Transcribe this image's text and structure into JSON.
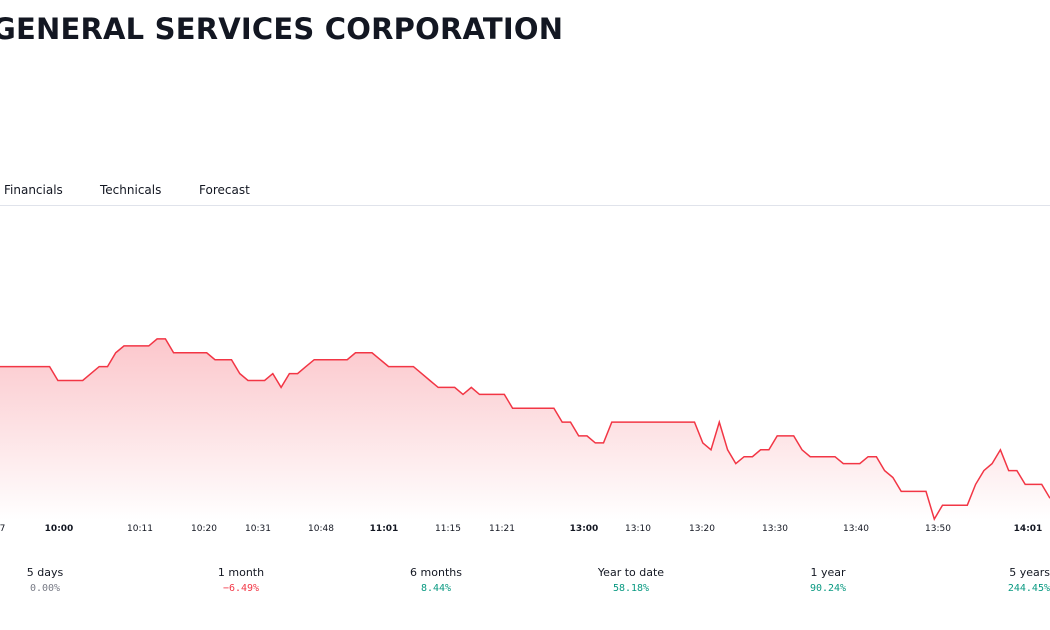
{
  "header": {
    "title": "GENERAL SERVICES CORPORATION"
  },
  "tabs": [
    {
      "label": "Financials"
    },
    {
      "label": "Technicals"
    },
    {
      "label": "Forecast"
    }
  ],
  "colors": {
    "line": "#f23645",
    "fill_top": "#fbc4c9",
    "negative": "#f23645",
    "positive": "#089981"
  },
  "chart_data": {
    "type": "area",
    "x_ticks": [
      "…7",
      "10:00",
      "10:11",
      "10:20",
      "10:31",
      "10:48",
      "11:01",
      "11:15",
      "11:21",
      "13:00",
      "13:10",
      "13:20",
      "13:30",
      "13:40",
      "13:50",
      "14:01"
    ],
    "bold_ticks": [
      "10:00",
      "11:01",
      "13:00",
      "14:01"
    ],
    "values": [
      59,
      59,
      59,
      59,
      59,
      59,
      59,
      57,
      57,
      57,
      57,
      58,
      59,
      59,
      61,
      62,
      62,
      62,
      62,
      63,
      63,
      61,
      61,
      61,
      61,
      61,
      60,
      60,
      60,
      58,
      57,
      57,
      57,
      58,
      56,
      58,
      58,
      59,
      60,
      60,
      60,
      60,
      60,
      61,
      61,
      61,
      60,
      59,
      59,
      59,
      59,
      58,
      57,
      56,
      56,
      56,
      55,
      56,
      55,
      55,
      55,
      55,
      53,
      53,
      53,
      53,
      53,
      53,
      51,
      51,
      49,
      49,
      48,
      48,
      51,
      51,
      51,
      51,
      51,
      51,
      51,
      51,
      51,
      51,
      51,
      48,
      47,
      51,
      47,
      45,
      46,
      46,
      47,
      47,
      49,
      49,
      49,
      47,
      46,
      46,
      46,
      46,
      45,
      45,
      45,
      46,
      46,
      44,
      43,
      41,
      41,
      41,
      41,
      37,
      39,
      39,
      39,
      39,
      42,
      44,
      45,
      47,
      44,
      44,
      42,
      42,
      42,
      40
    ]
  },
  "periods": [
    {
      "label": "5 days",
      "change": "0.00%",
      "sign": "zero"
    },
    {
      "label": "1 month",
      "change": "−6.49%",
      "sign": "neg"
    },
    {
      "label": "6 months",
      "change": "8.44%",
      "sign": "pos"
    },
    {
      "label": "Year to date",
      "change": "58.18%",
      "sign": "pos"
    },
    {
      "label": "1 year",
      "change": "90.24%",
      "sign": "pos"
    },
    {
      "label": "5 years",
      "change": "244.45%",
      "sign": "pos"
    }
  ]
}
